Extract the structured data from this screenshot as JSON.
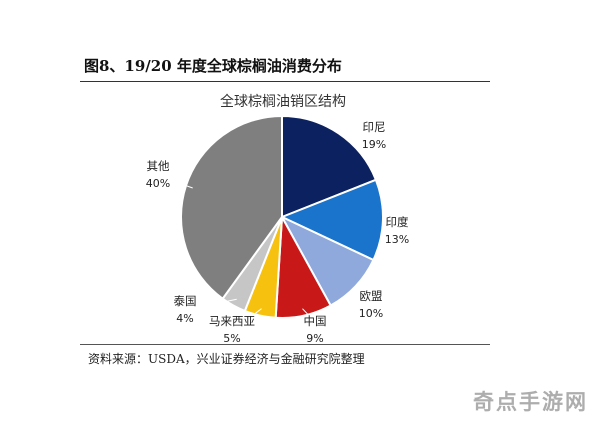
{
  "figure": {
    "title": "图8、19/20 年度全球棕榈油消费分布",
    "source": "资料来源：USDA，兴业证券经济与金融研究院整理"
  },
  "watermark": "奇点手游网",
  "chart_data": {
    "type": "pie",
    "title": "全球棕榈油销区结构",
    "slices": [
      {
        "label": "印尼",
        "value": 19,
        "pct_text": "19%",
        "color": "#0c2260"
      },
      {
        "label": "印度",
        "value": 13,
        "pct_text": "13%",
        "color": "#1b74cc"
      },
      {
        "label": "欧盟",
        "value": 10,
        "pct_text": "10%",
        "color": "#8fa9dc"
      },
      {
        "label": "中国",
        "value": 9,
        "pct_text": "9%",
        "color": "#c91818"
      },
      {
        "label": "马来西亚",
        "value": 5,
        "pct_text": "5%",
        "color": "#f6c10f"
      },
      {
        "label": "泰国",
        "value": 4,
        "pct_text": "4%",
        "color": "#c6c6c6"
      },
      {
        "label": "其他",
        "value": 40,
        "pct_text": "40%",
        "color": "#7f7f7f"
      }
    ],
    "start_angle_deg": 0,
    "direction": "clockwise"
  }
}
